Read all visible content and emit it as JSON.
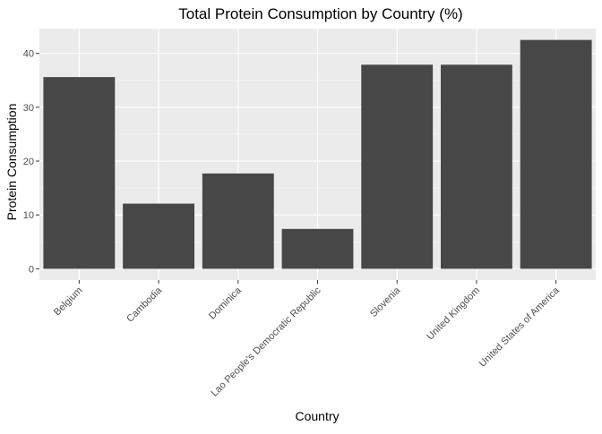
{
  "chart_data": {
    "type": "bar",
    "title": "Total Protein Consumption by Country (%)",
    "xlabel": "Country",
    "ylabel": "Protein Consumption",
    "categories": [
      "Belgium",
      "Cambodia",
      "Dominica",
      "Lao People's Democratic Republic",
      "Slovenia",
      "United Kingdom",
      "United States of America"
    ],
    "values": [
      35.6,
      12.1,
      17.7,
      7.4,
      37.9,
      37.9,
      42.5
    ],
    "ylim": [
      -2.1,
      44.6
    ],
    "yticks": [
      0,
      10,
      20,
      30,
      40
    ],
    "ytick_labels": [
      "0",
      "10",
      "20",
      "30",
      "40"
    ],
    "grid": true,
    "colors": {
      "panel": "#ebebeb",
      "grid_major": "#ffffff",
      "bar": "#474747",
      "tick_text": "#4d4d4d",
      "axis_text": "#000000"
    }
  }
}
